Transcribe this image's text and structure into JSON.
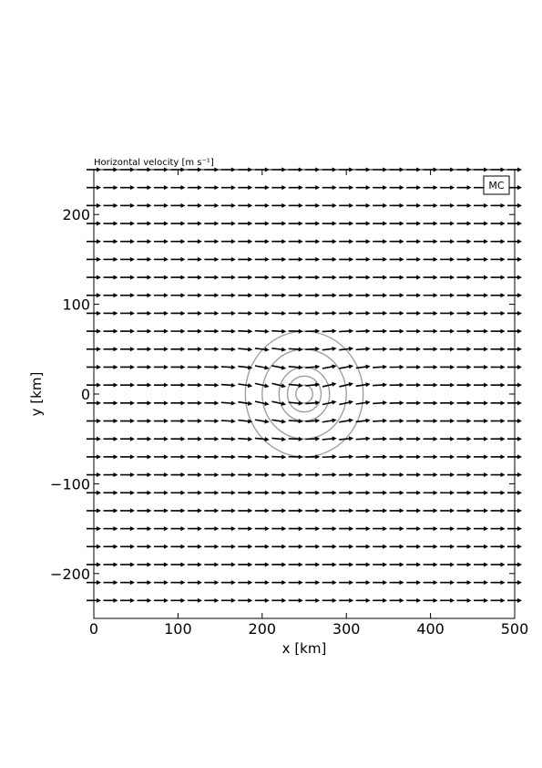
{
  "chart_data": {
    "type": "quiver",
    "title": "Horizontal velocity [m s⁻¹]",
    "badge": "MC",
    "xlabel": "x [km]",
    "ylabel": "y [km]",
    "xlim": [
      0,
      500
    ],
    "ylim": [
      -250,
      250
    ],
    "xticks": [
      0,
      100,
      200,
      300,
      400,
      500
    ],
    "xtick_labels": [
      "0",
      "100",
      "200",
      "300",
      "400",
      "500"
    ],
    "yticks": [
      -200,
      -100,
      0,
      100,
      200
    ],
    "ytick_labels": [
      "−200",
      "−100",
      "0",
      "100",
      "200"
    ],
    "grid": false,
    "vectors": {
      "x_start": 0,
      "x_step": 20,
      "y_start": -230,
      "y_step": 20,
      "direction": "eastward (+x)",
      "vortex_center": [
        250,
        0
      ]
    },
    "contours": {
      "center": [
        250,
        0
      ],
      "radii_km": [
        10,
        20,
        30,
        50,
        70
      ],
      "color": "#999999"
    },
    "colors": {
      "arrow": "#000000",
      "contour": "#999999",
      "frame": "#000000"
    }
  }
}
